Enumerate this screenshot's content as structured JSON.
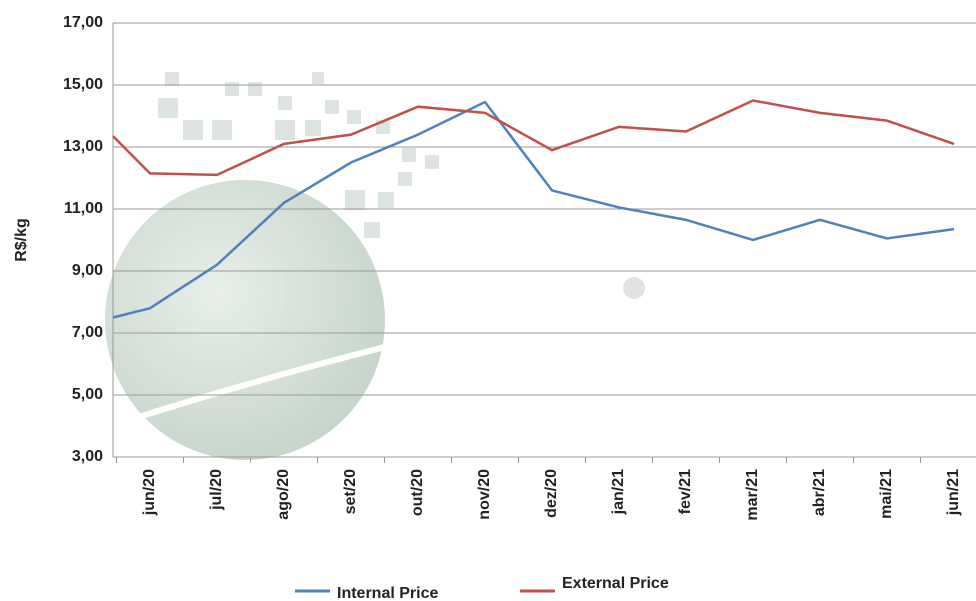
{
  "chart_data": {
    "type": "line",
    "ylabel": "R$/kg",
    "categories": [
      null,
      "jun/20",
      "jul/20",
      "ago/20",
      "set/20",
      "out/20",
      "nov/20",
      "dez/20",
      "jan/21",
      "fev/21",
      "mar/21",
      "abr/21",
      "mai/21",
      "jun/21"
    ],
    "series": [
      {
        "name": "Internal Price",
        "color": "#4f81bd",
        "values": [
          7.5,
          7.8,
          9.2,
          11.2,
          12.5,
          13.4,
          14.45,
          11.6,
          11.05,
          10.65,
          10.0,
          10.65,
          10.05,
          10.35
        ]
      },
      {
        "name": "External Price",
        "color": "#c0504d",
        "values": [
          13.35,
          12.15,
          12.1,
          13.1,
          13.4,
          14.3,
          14.1,
          12.9,
          13.65,
          13.5,
          14.5,
          14.1,
          13.85,
          13.1
        ]
      }
    ],
    "ylim": [
      3,
      17
    ],
    "yticks": [
      {
        "value": 3,
        "label": "3,00"
      },
      {
        "value": 5,
        "label": "5,00"
      },
      {
        "value": 7,
        "label": "7,00"
      },
      {
        "value": 9,
        "label": "9,00"
      },
      {
        "value": 11,
        "label": "11,00"
      },
      {
        "value": 13,
        "label": "13,00"
      },
      {
        "value": 15,
        "label": "15,00"
      },
      {
        "value": 17,
        "label": "17,00"
      }
    ],
    "grid": true,
    "legend": "bottom"
  }
}
